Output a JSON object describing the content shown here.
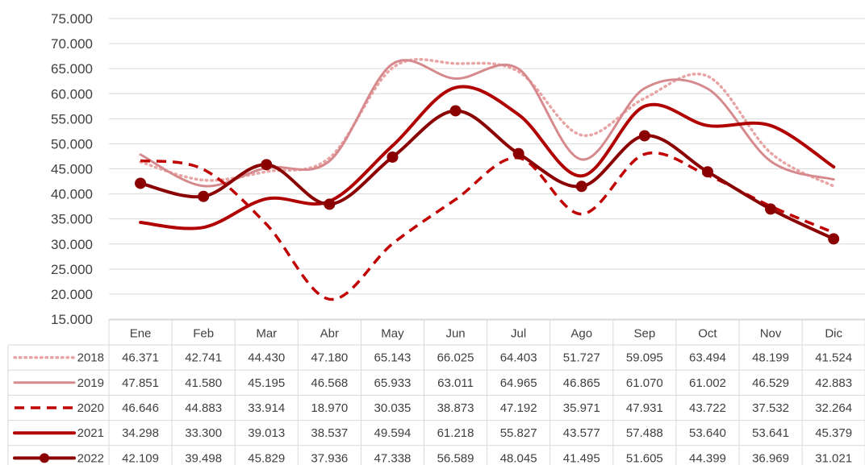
{
  "chart_data": {
    "type": "line",
    "categories": [
      "Ene",
      "Feb",
      "Mar",
      "Abr",
      "May",
      "Jun",
      "Jul",
      "Ago",
      "Sep",
      "Oct",
      "Nov",
      "Dic"
    ],
    "y_ticks": [
      "15.000",
      "20.000",
      "25.000",
      "30.000",
      "35.000",
      "40.000",
      "45.000",
      "50.000",
      "55.000",
      "60.000",
      "65.000",
      "70.000",
      "75.000"
    ],
    "ylim": [
      15000,
      75000
    ],
    "grid": true,
    "legend": "data-table-left",
    "series": [
      {
        "name": "2018",
        "color": "#e8a5a5",
        "line_style": "dotted",
        "values": [
          46371,
          42741,
          44430,
          47180,
          65143,
          66025,
          64403,
          51727,
          59095,
          63494,
          48199,
          41524
        ],
        "labels": [
          "46.371",
          "42.741",
          "44.430",
          "47.180",
          "65.143",
          "66.025",
          "64.403",
          "51.727",
          "59.095",
          "63.494",
          "48.199",
          "41.524"
        ]
      },
      {
        "name": "2019",
        "color": "#d68a8e",
        "line_style": "solid",
        "values": [
          47851,
          41580,
          45195,
          46568,
          65933,
          63011,
          64965,
          46865,
          61070,
          61002,
          46529,
          42883
        ],
        "labels": [
          "47.851",
          "41.580",
          "45.195",
          "46.568",
          "65.933",
          "63.011",
          "64.965",
          "46.865",
          "61.070",
          "61.002",
          "46.529",
          "42.883"
        ]
      },
      {
        "name": "2020",
        "color": "#c00000",
        "line_style": "dashed",
        "values": [
          46646,
          44883,
          33914,
          18970,
          30035,
          38873,
          47192,
          35971,
          47931,
          43722,
          37532,
          32264
        ],
        "labels": [
          "46.646",
          "44.883",
          "33.914",
          "18.970",
          "30.035",
          "38.873",
          "47.192",
          "35.971",
          "47.931",
          "43.722",
          "37.532",
          "32.264"
        ]
      },
      {
        "name": "2021",
        "color": "#b00000",
        "line_style": "solid-thick",
        "values": [
          34298,
          33300,
          39013,
          38537,
          49594,
          61218,
          55827,
          43577,
          57488,
          53640,
          53641,
          45379
        ],
        "labels": [
          "34.298",
          "33.300",
          "39.013",
          "38.537",
          "49.594",
          "61.218",
          "55.827",
          "43.577",
          "57.488",
          "53.640",
          "53.641",
          "45.379"
        ]
      },
      {
        "name": "2022",
        "color": "#8b0000",
        "line_style": "solid-markers",
        "values": [
          42109,
          39498,
          45829,
          37936,
          47338,
          56589,
          48045,
          41495,
          51605,
          44399,
          36969,
          31021
        ],
        "labels": [
          "42.109",
          "39.498",
          "45.829",
          "37.936",
          "47.338",
          "56.589",
          "48.045",
          "41.495",
          "51.605",
          "44.399",
          "36.969",
          "31.021"
        ]
      }
    ]
  }
}
